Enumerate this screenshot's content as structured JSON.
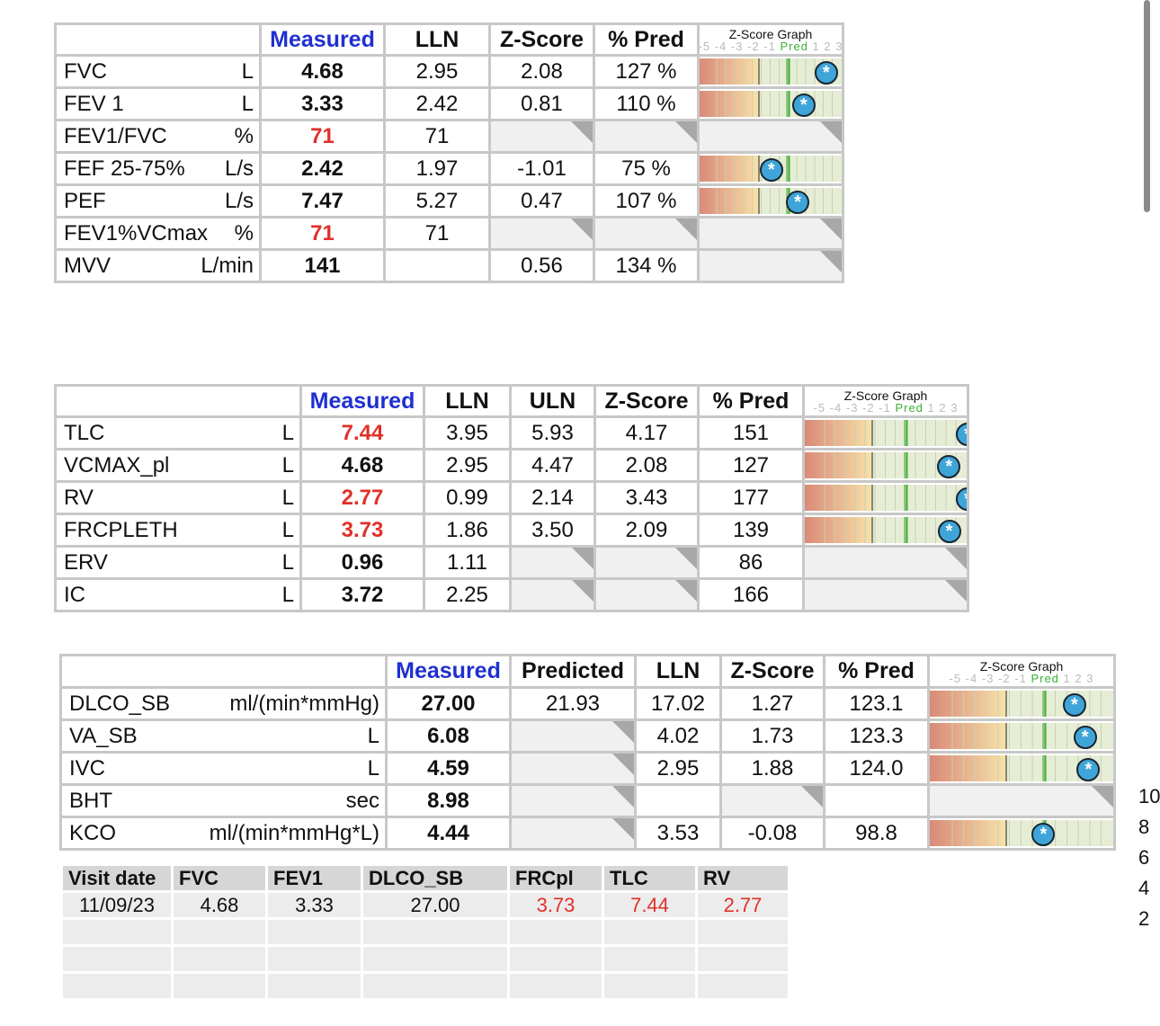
{
  "graph": {
    "title": "Z-Score Graph",
    "ticks": [
      "-5",
      "-4",
      "-3",
      "-2",
      "-1"
    ],
    "pred": "Pred",
    "ticks_after": [
      "1",
      "2",
      "3"
    ],
    "lln_z": -1.645,
    "range": [
      -5,
      3
    ]
  },
  "colors": {
    "measured_header": "#1f2fd0",
    "abnormal": "#e0302a",
    "pred_line": "#3cb034",
    "marker": "#3fa5d8"
  },
  "spiro": {
    "headers": [
      "",
      "Measured",
      "LLN",
      "Z-Score",
      "% Pred"
    ],
    "rows": [
      {
        "name": "FVC",
        "unit": "L",
        "cells": [
          "4.68",
          "2.95",
          "2.08",
          "127  %"
        ],
        "red": false,
        "z": 2.08
      },
      {
        "name": "FEV 1",
        "unit": "L",
        "cells": [
          "3.33",
          "2.42",
          "0.81",
          "110  %"
        ],
        "red": false,
        "z": 0.81
      },
      {
        "name": "FEV1/FVC",
        "unit": "%",
        "cells": [
          "71",
          "71",
          null,
          null
        ],
        "red": true,
        "z": null
      },
      {
        "name": "FEF 25-75%",
        "unit": "L/s",
        "cells": [
          "2.42",
          "1.97",
          "-1.01",
          "75  %"
        ],
        "red": false,
        "z": -1.01
      },
      {
        "name": "PEF",
        "unit": "L/s",
        "cells": [
          "7.47",
          "5.27",
          "0.47",
          "107  %"
        ],
        "red": false,
        "z": 0.47
      },
      {
        "name": "FEV1%VCmax",
        "unit": "%",
        "cells": [
          "71",
          "71",
          null,
          null
        ],
        "red": true,
        "z": null
      },
      {
        "name": "MVV",
        "unit": "L/min",
        "cells": [
          "141",
          "",
          "0.56",
          "134  %"
        ],
        "red": false,
        "z": null
      }
    ]
  },
  "lung_volumes": {
    "headers": [
      "",
      "Measured",
      "LLN",
      "ULN",
      "Z-Score",
      "% Pred"
    ],
    "rows": [
      {
        "name": "TLC",
        "unit": "L",
        "cells": [
          "7.44",
          "3.95",
          "5.93",
          "4.17",
          "151"
        ],
        "red": true,
        "z": 4.17
      },
      {
        "name": "VCMAX_pl",
        "unit": "L",
        "cells": [
          "4.68",
          "2.95",
          "4.47",
          "2.08",
          "127"
        ],
        "red": false,
        "z": 2.08
      },
      {
        "name": "RV",
        "unit": "L",
        "cells": [
          "2.77",
          "0.99",
          "2.14",
          "3.43",
          "177"
        ],
        "red": true,
        "z": 3.43
      },
      {
        "name": "FRCPLETH",
        "unit": "L",
        "cells": [
          "3.73",
          "1.86",
          "3.50",
          "2.09",
          "139"
        ],
        "red": true,
        "z": 2.09
      },
      {
        "name": "ERV",
        "unit": "L",
        "cells": [
          "0.96",
          "1.11",
          null,
          null,
          "86"
        ],
        "red": false,
        "z": null
      },
      {
        "name": "IC",
        "unit": "L",
        "cells": [
          "3.72",
          "2.25",
          null,
          null,
          "166"
        ],
        "red": false,
        "z": null
      }
    ]
  },
  "diffusion": {
    "headers": [
      "",
      "Measured",
      "Predicted",
      "LLN",
      "Z-Score",
      "% Pred"
    ],
    "rows": [
      {
        "name": "DLCO_SB",
        "unit": "ml/(min*mmHg)",
        "cells": [
          "27.00",
          "21.93",
          "17.02",
          "1.27",
          "123.1"
        ],
        "red": false,
        "z": 1.27
      },
      {
        "name": "VA_SB",
        "unit": "L",
        "cells": [
          "6.08",
          null,
          "4.02",
          "1.73",
          "123.3"
        ],
        "red": false,
        "z": 1.73
      },
      {
        "name": "IVC",
        "unit": "L",
        "cells": [
          "4.59",
          null,
          "2.95",
          "1.88",
          "124.0"
        ],
        "red": false,
        "z": 1.88
      },
      {
        "name": "BHT",
        "unit": "sec",
        "cells": [
          "8.98",
          null,
          "",
          null,
          ""
        ],
        "red": false,
        "z": null,
        "na_graph": true
      },
      {
        "name": "KCO",
        "unit": "ml/(min*mmHg*L)",
        "cells": [
          "4.44",
          null,
          "3.53",
          "-0.08",
          "98.8"
        ],
        "red": false,
        "z": -0.08
      }
    ]
  },
  "visits": {
    "headers": [
      "Visit date",
      "FVC",
      "FEV1",
      "DLCO_SB",
      "FRCpl",
      "TLC",
      "RV"
    ],
    "rows": [
      [
        "11/09/23",
        "4.68",
        "3.33",
        "27.00",
        "3.73",
        "7.44",
        "2.77"
      ]
    ],
    "red_columns": [
      4,
      5,
      6
    ],
    "empty_rows": 3
  },
  "side_axis": [
    "10",
    "8",
    "6",
    "4",
    "2"
  ]
}
